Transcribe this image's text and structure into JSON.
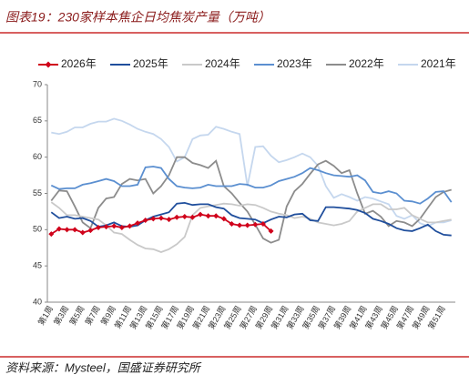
{
  "chart_data": {
    "type": "line",
    "title": "图表19：230家样本焦企日均焦炭产量（万吨）",
    "source": "资料来源：Mysteel，国盛证券研究所",
    "categories": [
      "第1周",
      null,
      "第3周",
      null,
      "第5周",
      null,
      "第7周",
      null,
      "第9周",
      null,
      "第11周",
      null,
      "第13周",
      null,
      "第15周",
      null,
      "第17周",
      null,
      "第19周",
      null,
      "第21周",
      null,
      "第23周",
      null,
      "第25周",
      null,
      "第27周",
      null,
      "第29周",
      null,
      "第31周",
      null,
      "第33周",
      null,
      "第35周",
      null,
      "第37周",
      null,
      "第39周",
      null,
      "第41周",
      null,
      "第43周",
      null,
      "第45周",
      null,
      "第47周",
      null,
      "第49周",
      null,
      "第51周",
      null
    ],
    "ylim": [
      40,
      70
    ],
    "yticks": [
      40,
      45,
      50,
      55,
      60,
      65,
      70
    ],
    "grid": false,
    "legend": "top",
    "series": [
      {
        "name": "2026年",
        "color": "#d0021b",
        "marker": "diamond",
        "values": [
          49.4,
          50.1,
          50.0,
          50.0,
          49.6,
          49.9,
          50.3,
          50.4,
          50.5,
          50.3,
          50.5,
          50.9,
          51.3,
          51.5,
          51.6,
          51.4,
          51.7,
          51.8,
          51.7,
          52.1,
          51.9,
          51.9,
          51.5,
          50.8,
          50.6,
          50.6,
          50.7,
          50.8,
          49.8,
          null,
          null,
          null,
          null,
          null,
          null,
          null,
          null,
          null,
          null,
          null,
          null,
          null,
          null,
          null,
          null,
          null,
          null,
          null,
          null,
          null,
          null,
          null
        ]
      },
      {
        "name": "2025年",
        "color": "#1f4e9c",
        "values": [
          52.4,
          51.6,
          51.8,
          51.5,
          51.6,
          51.2,
          50.4,
          50.6,
          51.0,
          50.5,
          50.4,
          50.6,
          51.3,
          51.8,
          52.1,
          52.4,
          53.6,
          53.7,
          53.4,
          53.5,
          53.5,
          53.1,
          52.9,
          52.0,
          51.6,
          51.5,
          51.4,
          50.9,
          51.4,
          51.8,
          51.7,
          52.1,
          52.2,
          51.3,
          51.2,
          53.1,
          53.1,
          53.0,
          52.9,
          52.7,
          52.3,
          51.5,
          51.2,
          50.8,
          50.2,
          49.9,
          49.8,
          50.2,
          50.7,
          49.8,
          49.3,
          49.2
        ]
      },
      {
        "name": "2024年",
        "color": "#c9c9c9",
        "values": [
          53.8,
          53.0,
          52.0,
          52.0,
          51.8,
          51.6,
          51.4,
          50.6,
          49.6,
          49.4,
          48.6,
          47.9,
          47.4,
          47.3,
          46.9,
          47.3,
          48.0,
          49.0,
          52.0,
          53.0,
          53.2,
          53.4,
          53.6,
          53.5,
          53.3,
          53.5,
          53.4,
          53.0,
          52.5,
          52.2,
          52.0,
          51.6,
          51.8,
          51.5,
          51.0,
          50.8,
          50.6,
          50.8,
          51.2,
          52.5,
          53.0,
          53.5,
          53.5,
          52.8,
          52.8,
          53.0,
          52.0,
          51.5,
          51.0,
          51.0,
          51.2,
          51.4
        ]
      },
      {
        "name": "2023年",
        "color": "#5b8fd0",
        "values": [
          56.1,
          55.6,
          55.7,
          55.7,
          56.2,
          56.4,
          56.7,
          57.0,
          56.7,
          56.0,
          56.0,
          56.2,
          58.6,
          58.7,
          58.5,
          57.0,
          56.0,
          55.8,
          55.7,
          55.8,
          56.2,
          56.0,
          56.0,
          56.0,
          56.3,
          56.2,
          55.8,
          55.8,
          56.1,
          56.7,
          57.0,
          57.3,
          57.8,
          58.5,
          58.2,
          57.8,
          57.5,
          57.4,
          57.3,
          57.5,
          56.8,
          55.2,
          55.0,
          55.3,
          55.0,
          54.0,
          53.9,
          53.6,
          54.3,
          55.2,
          55.3,
          53.8
        ]
      },
      {
        "name": "2022年",
        "color": "#8c8c8c",
        "values": [
          54.0,
          55.4,
          55.3,
          53.2,
          51.0,
          50.2,
          53.0,
          54.3,
          54.5,
          56.3,
          57.0,
          56.8,
          57.0,
          55.0,
          56.0,
          57.5,
          60.0,
          60.0,
          59.2,
          58.9,
          58.5,
          59.5,
          56.0,
          55.0,
          53.7,
          52.5,
          50.7,
          48.8,
          48.2,
          48.6,
          53.2,
          55.3,
          56.3,
          57.7,
          59.0,
          59.5,
          58.8,
          57.8,
          58.2,
          55.0,
          52.2,
          52.6,
          51.8,
          50.5,
          51.2,
          51.0,
          50.5,
          51.5,
          53.0,
          54.5,
          55.2,
          55.5
        ]
      },
      {
        "name": "2021年",
        "color": "#c5d7ee",
        "values": [
          63.4,
          63.2,
          63.5,
          64.1,
          64.1,
          64.6,
          64.9,
          64.9,
          65.3,
          65.0,
          64.5,
          63.9,
          63.5,
          63.2,
          62.5,
          61.4,
          59.4,
          60.0,
          62.5,
          63.0,
          63.1,
          64.2,
          63.9,
          63.5,
          63.2,
          56.0,
          61.4,
          61.5,
          60.2,
          59.3,
          59.6,
          60.0,
          60.5,
          60.0,
          58.8,
          56.0,
          54.4,
          54.9,
          54.5,
          54.0,
          54.5,
          54.3,
          53.9,
          53.5,
          51.9,
          51.5,
          52.0,
          50.9,
          50.5,
          51.0,
          51.0,
          51.3
        ]
      }
    ]
  }
}
